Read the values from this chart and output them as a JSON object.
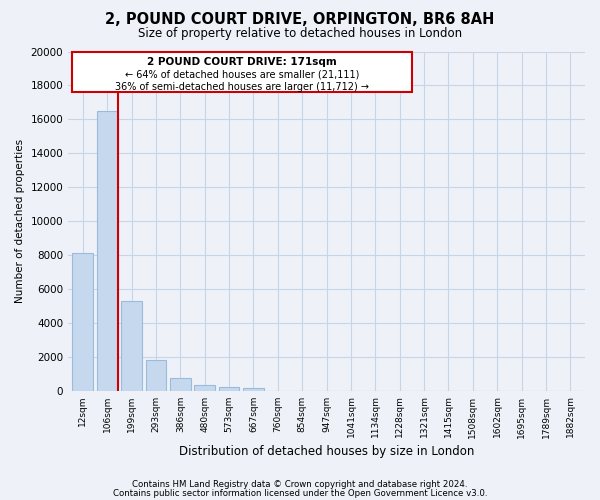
{
  "title": "2, POUND COURT DRIVE, ORPINGTON, BR6 8AH",
  "subtitle": "Size of property relative to detached houses in London",
  "xlabel": "Distribution of detached houses by size in London",
  "ylabel": "Number of detached properties",
  "categories": [
    "12sqm",
    "106sqm",
    "199sqm",
    "293sqm",
    "386sqm",
    "480sqm",
    "573sqm",
    "667sqm",
    "760sqm",
    "854sqm",
    "947sqm",
    "1041sqm",
    "1134sqm",
    "1228sqm",
    "1321sqm",
    "1415sqm",
    "1508sqm",
    "1602sqm",
    "1695sqm",
    "1789sqm",
    "1882sqm"
  ],
  "values": [
    8100,
    16500,
    5300,
    1800,
    750,
    300,
    200,
    150,
    0,
    0,
    0,
    0,
    0,
    0,
    0,
    0,
    0,
    0,
    0,
    0,
    0
  ],
  "bar_color": "#c5d8ed",
  "bar_edge_color": "#99bbdd",
  "property_line_color": "#cc0000",
  "annotation_title": "2 POUND COURT DRIVE: 171sqm",
  "annotation_line1": "← 64% of detached houses are smaller (21,111)",
  "annotation_line2": "36% of semi-detached houses are larger (11,712) →",
  "box_color": "white",
  "box_edge_color": "#cc0000",
  "ylim": [
    0,
    20000
  ],
  "yticks": [
    0,
    2000,
    4000,
    6000,
    8000,
    10000,
    12000,
    14000,
    16000,
    18000,
    20000
  ],
  "footer_line1": "Contains HM Land Registry data © Crown copyright and database right 2024.",
  "footer_line2": "Contains public sector information licensed under the Open Government Licence v3.0.",
  "background_color": "#eef2f8",
  "grid_color": "#c8d4e8"
}
